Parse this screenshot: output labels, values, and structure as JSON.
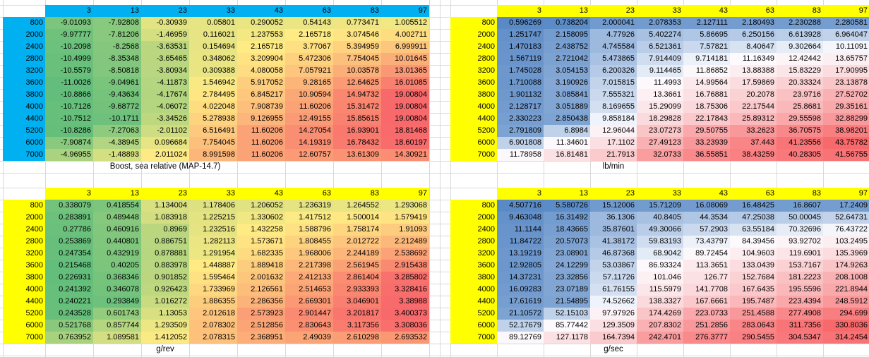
{
  "colors": {
    "cyan_header": "#00B0F0",
    "yellow_header": "#FFFF00",
    "gridline": "#D9D9D9",
    "scale_gyr": [
      "#63BE7B",
      "#FFEB84",
      "#F8696B"
    ],
    "scale_bwr": [
      "#5A8AC6",
      "#FCFCFF",
      "#F8696B"
    ]
  },
  "columns": [
    "3",
    "13",
    "23",
    "33",
    "43",
    "63",
    "83",
    "97"
  ],
  "rpm_rows": [
    "800",
    "2000",
    "2400",
    "2800",
    "3200",
    "3600",
    "3800",
    "4000",
    "4400",
    "5200",
    "6000",
    "7000"
  ],
  "tables": [
    {
      "id": "boost",
      "label": "Boost, sea relative (MAP-14.7)",
      "header_color": "#00B0F0",
      "scale": "gyr",
      "values": [
        [
          "-9.01093",
          "-7.92808",
          "-0.30939",
          "0.05801",
          "0.290052",
          "0.54143",
          "0.773471",
          "1.005512"
        ],
        [
          "-9.97777",
          "-7.81206",
          "-1.46959",
          "0.116021",
          "1.237553",
          "2.165718",
          "3.074546",
          "4.002711"
        ],
        [
          "-10.2098",
          "-8.2568",
          "-3.63531",
          "0.154694",
          "2.165718",
          "3.77067",
          "5.394959",
          "6.999911"
        ],
        [
          "-10.4999",
          "-8.35348",
          "-3.65465",
          "0.348062",
          "3.209904",
          "5.472306",
          "7.754045",
          "10.01645"
        ],
        [
          "-10.5579",
          "-8.50818",
          "-3.80934",
          "0.309388",
          "4.080058",
          "7.057921",
          "10.03578",
          "13.01365"
        ],
        [
          "-11.0026",
          "-9.04961",
          "-4.11873",
          "1.546942",
          "5.917052",
          "9.28165",
          "12.64625",
          "16.01085"
        ],
        [
          "-10.8866",
          "-9.43634",
          "-4.17674",
          "2.784495",
          "6.845217",
          "10.90594",
          "14.94732",
          "19.00804"
        ],
        [
          "-10.7126",
          "-9.68772",
          "-4.06072",
          "4.022048",
          "7.908739",
          "11.60206",
          "15.31472",
          "19.00804"
        ],
        [
          "-10.7512",
          "-10.1711",
          "-3.34526",
          "5.278938",
          "9.126955",
          "12.49155",
          "15.85615",
          "19.00804"
        ],
        [
          "-10.8286",
          "-7.27063",
          "-2.01102",
          "6.516491",
          "11.60206",
          "14.27054",
          "16.93901",
          "18.81468"
        ],
        [
          "-7.90874",
          "-4.38945",
          "0.096684",
          "7.754045",
          "11.60206",
          "14.19319",
          "16.78432",
          "18.60197"
        ],
        [
          "-4.96955",
          "-1.48893",
          "2.011024",
          "8.991598",
          "11.60206",
          "12.60757",
          "13.61309",
          "14.30921"
        ]
      ]
    },
    {
      "id": "lb-min",
      "label": "lb/min",
      "header_color": "#FFFF00",
      "scale": "bwr",
      "values": [
        [
          "0.596269",
          "0.738204",
          "2.000041",
          "2.078353",
          "2.127111",
          "2.180493",
          "2.230288",
          "2.280581"
        ],
        [
          "1.251747",
          "2.158095",
          "4.77926",
          "5.402274",
          "5.86695",
          "6.250156",
          "6.613928",
          "6.964047"
        ],
        [
          "1.470183",
          "2.438752",
          "4.745584",
          "6.521361",
          "7.57821",
          "8.40647",
          "9.302664",
          "10.11091"
        ],
        [
          "1.567119",
          "2.721042",
          "5.473865",
          "7.914409",
          "9.714181",
          "11.16349",
          "12.42442",
          "13.65757"
        ],
        [
          "1.745028",
          "3.054153",
          "6.200326",
          "9.114465",
          "11.86852",
          "13.88388",
          "15.83229",
          "17.90995"
        ],
        [
          "1.710088",
          "3.190926",
          "7.015815",
          "11.4993",
          "14.99564",
          "17.59869",
          "20.33324",
          "23.13878"
        ],
        [
          "1.901132",
          "3.085841",
          "7.555321",
          "13.3661",
          "16.76881",
          "20.2078",
          "23.9716",
          "27.52702"
        ],
        [
          "2.128717",
          "3.051889",
          "8.169655",
          "15.29099",
          "18.75306",
          "22.17544",
          "25.8681",
          "29.35161"
        ],
        [
          "2.330223",
          "2.850438",
          "9.858184",
          "18.29828",
          "22.17843",
          "25.89312",
          "29.55598",
          "32.88299"
        ],
        [
          "2.791809",
          "6.8984",
          "12.96044",
          "23.07273",
          "29.50755",
          "33.2623",
          "36.70575",
          "38.98201"
        ],
        [
          "6.901808",
          "11.34601",
          "17.1102",
          "27.49123",
          "33.23939",
          "37.443",
          "41.23556",
          "43.75782"
        ],
        [
          "11.78958",
          "16.81481",
          "21.7913",
          "32.0733",
          "36.55851",
          "38.43259",
          "40.28305",
          "41.56755"
        ]
      ]
    },
    {
      "id": "g-rev",
      "label": "g/rev",
      "header_color": "#FFFF00",
      "scale": "gyr",
      "values": [
        [
          "0.338079",
          "0.418554",
          "1.134004",
          "1.178406",
          "1.206052",
          "1.236319",
          "1.264552",
          "1.293068"
        ],
        [
          "0.283891",
          "0.489448",
          "1.083918",
          "1.225215",
          "1.330602",
          "1.417512",
          "1.500014",
          "1.579419"
        ],
        [
          "0.27786",
          "0.460916",
          "0.8969",
          "1.232516",
          "1.432258",
          "1.588796",
          "1.758174",
          "1.91093"
        ],
        [
          "0.253869",
          "0.440801",
          "0.886751",
          "1.282113",
          "1.573671",
          "1.808455",
          "2.012722",
          "2.212489"
        ],
        [
          "0.247354",
          "0.432919",
          "0.878881",
          "1.291954",
          "1.682335",
          "1.968006",
          "2.244189",
          "2.538692"
        ],
        [
          "0.215468",
          "0.40205",
          "0.883978",
          "1.448887",
          "1.889418",
          "2.217398",
          "2.561945",
          "2.915438"
        ],
        [
          "0.226931",
          "0.368346",
          "0.901852",
          "1.595464",
          "2.001632",
          "2.412133",
          "2.861404",
          "3.285802"
        ],
        [
          "0.241392",
          "0.346078",
          "0.926423",
          "1.733969",
          "2.126561",
          "2.514653",
          "2.933393",
          "3.328416"
        ],
        [
          "0.240221",
          "0.293849",
          "1.016272",
          "1.886355",
          "2.286356",
          "2.669301",
          "3.046901",
          "3.38988"
        ],
        [
          "0.243528",
          "0.601743",
          "1.13053",
          "2.012618",
          "2.573923",
          "2.901447",
          "3.201817",
          "3.400373"
        ],
        [
          "0.521768",
          "0.857744",
          "1.293509",
          "2.078302",
          "2.512856",
          "2.830643",
          "3.117356",
          "3.308036"
        ],
        [
          "0.763952",
          "1.089581",
          "1.412052",
          "2.078315",
          "2.368951",
          "2.49039",
          "2.610298",
          "2.693532"
        ]
      ]
    },
    {
      "id": "g-sec",
      "label": "g/sec",
      "header_color": "#FFFF00",
      "scale": "bwr",
      "values": [
        [
          "4.507716",
          "5.580726",
          "15.12006",
          "15.71209",
          "16.08069",
          "16.48425",
          "16.8607",
          "17.2409"
        ],
        [
          "9.463048",
          "16.31492",
          "36.1306",
          "40.8405",
          "44.3534",
          "47.25038",
          "50.00045",
          "52.64731"
        ],
        [
          "11.1144",
          "18.43665",
          "35.87601",
          "49.30066",
          "57.2903",
          "63.55184",
          "70.32696",
          "76.43722"
        ],
        [
          "11.84722",
          "20.57073",
          "41.38172",
          "59.83193",
          "73.43797",
          "84.39456",
          "93.92702",
          "103.2495"
        ],
        [
          "13.19219",
          "23.08901",
          "46.87368",
          "68.9042",
          "89.72454",
          "104.9603",
          "119.6901",
          "135.3969"
        ],
        [
          "12.92805",
          "24.12299",
          "53.03867",
          "86.93324",
          "113.3651",
          "133.0439",
          "153.7167",
          "174.9263"
        ],
        [
          "14.37231",
          "23.32856",
          "57.11726",
          "101.046",
          "126.77",
          "152.7684",
          "181.2223",
          "208.1008"
        ],
        [
          "16.09283",
          "23.07189",
          "61.76155",
          "115.5979",
          "141.7708",
          "167.6435",
          "195.5596",
          "221.8944"
        ],
        [
          "17.61619",
          "21.54895",
          "74.52662",
          "138.3327",
          "167.6661",
          "195.7487",
          "223.4394",
          "248.5912"
        ],
        [
          "21.10572",
          "52.15103",
          "97.97926",
          "174.4269",
          "223.0733",
          "251.4588",
          "277.4908",
          "294.699"
        ],
        [
          "52.17679",
          "85.77442",
          "129.3509",
          "207.8302",
          "251.2856",
          "283.0643",
          "311.7356",
          "330.8036"
        ],
        [
          "89.12769",
          "127.1178",
          "164.7394",
          "242.4701",
          "276.3777",
          "290.5455",
          "304.5347",
          "314.2454"
        ]
      ]
    }
  ]
}
